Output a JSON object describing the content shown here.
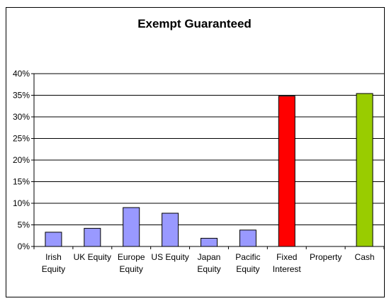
{
  "chart_data": {
    "type": "bar",
    "title": "Exempt Guaranteed",
    "xlabel": "",
    "ylabel": "",
    "categories": [
      [
        "Irish",
        "Equity"
      ],
      [
        "UK Equity"
      ],
      [
        "Europe",
        "Equity"
      ],
      [
        "US Equity"
      ],
      [
        "Japan",
        "Equity"
      ],
      [
        "Pacific",
        "Equity"
      ],
      [
        "Fixed",
        "Interest"
      ],
      [
        "Property"
      ],
      [
        "Cash"
      ]
    ],
    "values": [
      3.3,
      4.2,
      9.0,
      7.7,
      1.9,
      3.8,
      34.8,
      0,
      35.4
    ],
    "bar_colors": [
      "#9999ff",
      "#9999ff",
      "#9999ff",
      "#9999ff",
      "#9999ff",
      "#9999ff",
      "#ff0000",
      "#9999ff",
      "#99cc00"
    ],
    "ylim": [
      0,
      40
    ],
    "yticks": [
      0,
      5,
      10,
      15,
      20,
      25,
      30,
      35,
      40
    ],
    "ytick_labels": [
      "0%",
      "5%",
      "10%",
      "15%",
      "20%",
      "25%",
      "30%",
      "35%",
      "40%"
    ],
    "grid": true,
    "legend": "none"
  }
}
